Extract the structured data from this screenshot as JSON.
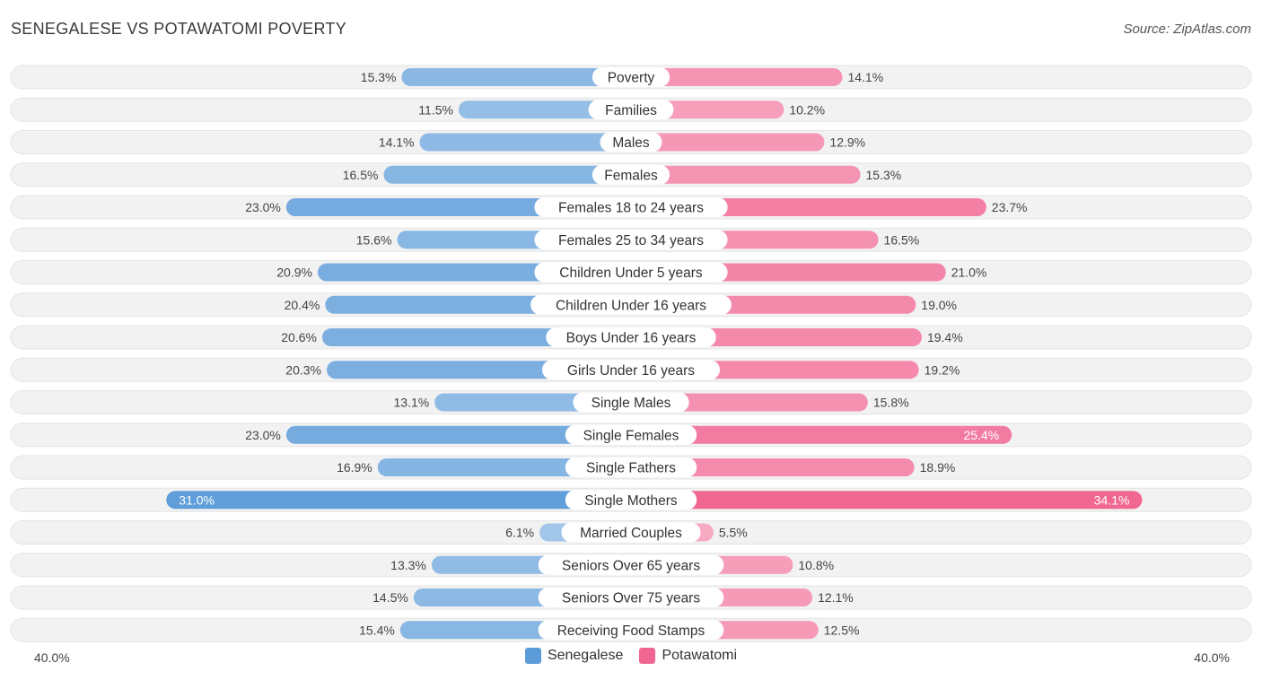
{
  "header": {
    "title": "SENEGALESE VS POTAWATOMI POVERTY",
    "source": "Source: ZipAtlas.com"
  },
  "colors": {
    "left": "#5b9bd8",
    "right": "#f06591",
    "row_bg": "#f1f1f1"
  },
  "chart_data": {
    "type": "bar",
    "orientation": "diverging-horizontal",
    "title": "SENEGALESE VS POTAWATOMI POVERTY",
    "unit": "%",
    "xlim": [
      -40,
      40
    ],
    "axis": {
      "left_label": "40.0%",
      "right_label": "40.0%"
    },
    "legend": {
      "position": "bottom-center"
    },
    "categories": [
      "Poverty",
      "Families",
      "Males",
      "Females",
      "Females 18 to 24 years",
      "Females 25 to 34 years",
      "Children Under 5 years",
      "Children Under 16 years",
      "Boys Under 16 years",
      "Girls Under 16 years",
      "Single Males",
      "Single Females",
      "Single Fathers",
      "Single Mothers",
      "Married Couples",
      "Seniors Over 65 years",
      "Seniors Over 75 years",
      "Receiving Food Stamps"
    ],
    "series": [
      {
        "name": "Senegalese",
        "values": [
          15.3,
          11.5,
          14.1,
          16.5,
          23.0,
          15.6,
          20.9,
          20.4,
          20.6,
          20.3,
          13.1,
          23.0,
          16.9,
          31.0,
          6.1,
          13.3,
          14.5,
          15.4
        ],
        "labels": [
          "15.3%",
          "11.5%",
          "14.1%",
          "16.5%",
          "23.0%",
          "15.6%",
          "20.9%",
          "20.4%",
          "20.6%",
          "20.3%",
          "13.1%",
          "23.0%",
          "16.9%",
          "31.0%",
          "6.1%",
          "13.3%",
          "14.5%",
          "15.4%"
        ]
      },
      {
        "name": "Potawatomi",
        "values": [
          14.1,
          10.2,
          12.9,
          15.3,
          23.7,
          16.5,
          21.0,
          19.0,
          19.4,
          19.2,
          15.8,
          25.4,
          18.9,
          34.1,
          5.5,
          10.8,
          12.1,
          12.5
        ],
        "labels": [
          "14.1%",
          "10.2%",
          "12.9%",
          "15.3%",
          "23.7%",
          "16.5%",
          "21.0%",
          "19.0%",
          "19.4%",
          "19.2%",
          "15.8%",
          "25.4%",
          "18.9%",
          "34.1%",
          "5.5%",
          "10.8%",
          "12.1%",
          "12.5%"
        ]
      }
    ]
  }
}
